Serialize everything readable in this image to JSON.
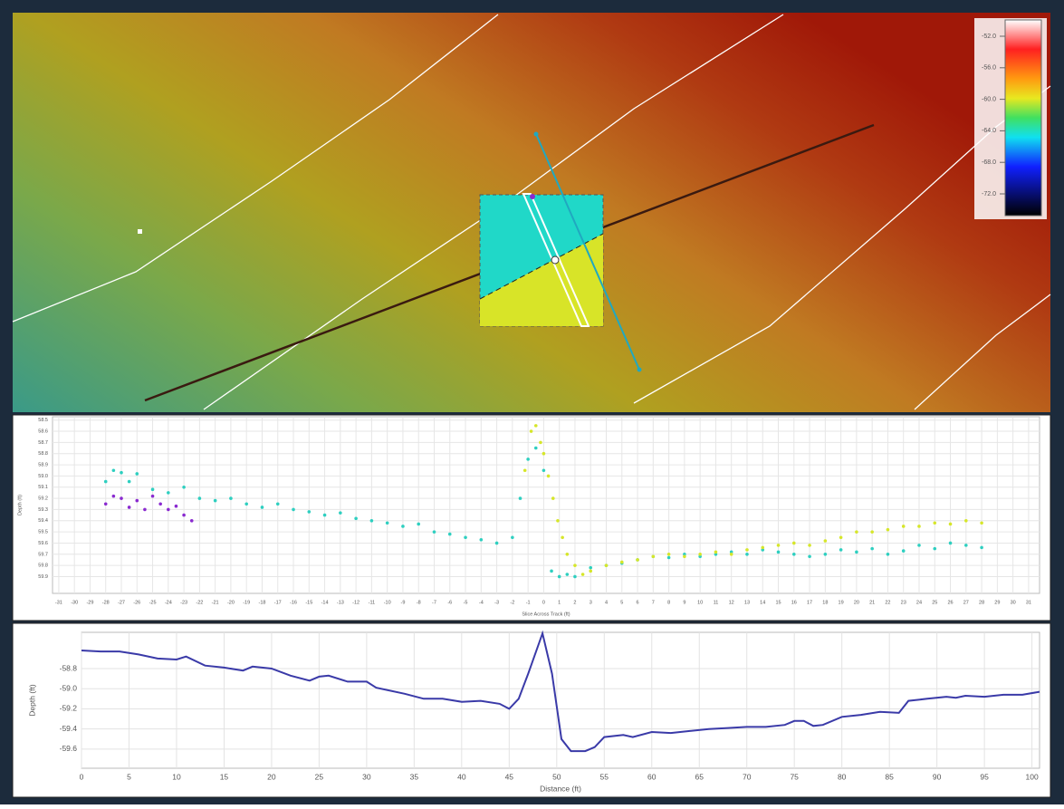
{
  "map": {
    "colorbar_ticks": [
      {
        "value": -52,
        "label": "-52.0"
      },
      {
        "value": -56,
        "label": "-56.0"
      },
      {
        "value": -60,
        "label": "-60.0"
      },
      {
        "value": -64,
        "label": "-64.0"
      },
      {
        "value": -68,
        "label": "-68.0"
      },
      {
        "value": -72,
        "label": "-72.0"
      }
    ]
  },
  "chart_data": [
    {
      "type": "scatter",
      "ylabel": "Depth (ft)",
      "xlabel": "Slice Across Track (ft)",
      "xlim": [
        -31.4,
        31.7
      ],
      "ylim": [
        58.47,
        60.05
      ],
      "y_inverted": true,
      "grid": true,
      "xticks": [
        -31,
        -30,
        -29,
        -28,
        -27,
        -26,
        -25,
        -24,
        -23,
        -22,
        -21,
        -20,
        -19,
        -18,
        -17,
        -16,
        -15,
        -14,
        -13,
        -12,
        -11,
        -10,
        -9,
        -8,
        -7,
        -6,
        -5,
        -4,
        -3,
        -2,
        -1,
        0,
        1,
        2,
        3,
        4,
        5,
        6,
        7,
        8,
        9,
        10,
        11,
        12,
        13,
        14,
        15,
        16,
        17,
        18,
        19,
        20,
        21,
        22,
        23,
        24,
        25,
        26,
        27,
        28,
        29,
        30,
        31
      ],
      "yticks": [
        58.5,
        58.6,
        58.7,
        58.8,
        58.9,
        {
          "value": 59,
          "label": "59.0"
        },
        59.1,
        59.2,
        59.3,
        59.4,
        59.5,
        59.6,
        59.7,
        59.8,
        59.9
      ],
      "series": [
        {
          "color": "#2ecfc0",
          "x": [
            -28,
            -27.5,
            -27,
            -26.5,
            -26,
            -25,
            -24,
            -23,
            -22,
            -21,
            -20,
            -19,
            -18,
            -17,
            -16,
            -15,
            -14,
            -13,
            -12,
            -11,
            -10,
            -9,
            -8,
            -7,
            -6,
            -5,
            -4,
            -3,
            -2,
            -1.5,
            -1,
            -0.5,
            0,
            0.5,
            1,
            1.5,
            2,
            3,
            4,
            5,
            6,
            7,
            8,
            9,
            10,
            11,
            12,
            13,
            14,
            15,
            16,
            17,
            18,
            19,
            20,
            21,
            22,
            23,
            24,
            25,
            26,
            27,
            28
          ],
          "values": [
            59.05,
            58.95,
            58.97,
            59.05,
            58.98,
            59.12,
            59.15,
            59.1,
            59.2,
            59.22,
            59.2,
            59.25,
            59.28,
            59.25,
            59.3,
            59.32,
            59.35,
            59.33,
            59.38,
            59.4,
            59.42,
            59.45,
            59.43,
            59.5,
            59.52,
            59.55,
            59.57,
            59.6,
            59.55,
            59.2,
            58.85,
            58.75,
            58.95,
            59.85,
            59.9,
            59.88,
            59.9,
            59.82,
            59.8,
            59.78,
            59.75,
            59.72,
            59.73,
            59.7,
            59.72,
            59.7,
            59.68,
            59.7,
            59.66,
            59.68,
            59.7,
            59.72,
            59.7,
            59.66,
            59.68,
            59.65,
            59.7,
            59.67,
            59.62,
            59.65,
            59.6,
            59.62,
            59.64
          ]
        },
        {
          "color": "#8a2ad0",
          "x": [
            -28,
            -27.5,
            -27,
            -26.5,
            -26,
            -25.5,
            -25,
            -24.5,
            -24,
            -23.5,
            -23,
            -22.5
          ],
          "values": [
            59.25,
            59.18,
            59.2,
            59.28,
            59.22,
            59.3,
            59.18,
            59.25,
            59.3,
            59.27,
            59.35,
            59.4
          ]
        },
        {
          "color": "#d6e62a",
          "x": [
            -1.2,
            -0.8,
            -0.5,
            -0.2,
            0,
            0.3,
            0.6,
            0.9,
            1.2,
            1.5,
            2,
            2.5,
            3,
            4,
            5,
            6,
            7,
            8,
            9,
            10,
            11,
            12,
            13,
            14,
            15,
            16,
            17,
            18,
            19,
            20,
            21,
            22,
            23,
            24,
            25,
            26,
            27,
            28
          ],
          "values": [
            58.95,
            58.6,
            58.55,
            58.7,
            58.8,
            59.0,
            59.2,
            59.4,
            59.55,
            59.7,
            59.8,
            59.88,
            59.85,
            59.8,
            59.77,
            59.75,
            59.72,
            59.7,
            59.72,
            59.7,
            59.68,
            59.7,
            59.66,
            59.64,
            59.62,
            59.6,
            59.62,
            59.58,
            59.55,
            59.5,
            59.5,
            59.48,
            59.45,
            59.45,
            59.42,
            59.43,
            59.4,
            59.42
          ]
        }
      ]
    },
    {
      "type": "line",
      "ylabel": "Depth (ft)",
      "xlabel": "Distance (ft)",
      "xlim": [
        0,
        100.8
      ],
      "ylim": [
        -59.79,
        -58.44
      ],
      "grid": true,
      "xticks": [
        0,
        5,
        10,
        15,
        20,
        25,
        30,
        35,
        40,
        45,
        50,
        55,
        60,
        65,
        70,
        75,
        80,
        85,
        90,
        95,
        100
      ],
      "yticks": [
        -58.8,
        {
          "value": -59,
          "label": "-59.0"
        },
        -59.2,
        -59.4,
        -59.6
      ],
      "series": [
        {
          "color": "#3a3aa8",
          "x": [
            0,
            2,
            4,
            6,
            8,
            10,
            11,
            13,
            15,
            17,
            18,
            20,
            22,
            24,
            25,
            26,
            28,
            30,
            31,
            34,
            36,
            38,
            40,
            42,
            44,
            45,
            46,
            47,
            48.5,
            49.5,
            50.5,
            51.5,
            53,
            54,
            55,
            57,
            58,
            60,
            62,
            64,
            66,
            68,
            70,
            72,
            74,
            75,
            76,
            77,
            78,
            80,
            82,
            84,
            86,
            87,
            89,
            91,
            92,
            93,
            95,
            97,
            99,
            100.8
          ],
          "values": [
            -58.62,
            -58.63,
            -58.63,
            -58.66,
            -58.7,
            -58.71,
            -58.68,
            -58.77,
            -58.79,
            -58.82,
            -58.78,
            -58.8,
            -58.87,
            -58.92,
            -58.88,
            -58.87,
            -58.93,
            -58.93,
            -58.99,
            -59.05,
            -59.1,
            -59.1,
            -59.13,
            -59.12,
            -59.15,
            -59.2,
            -59.1,
            -58.85,
            -58.45,
            -58.85,
            -59.5,
            -59.62,
            -59.62,
            -59.58,
            -59.48,
            -59.46,
            -59.48,
            -59.43,
            -59.44,
            -59.42,
            -59.4,
            -59.39,
            -59.38,
            -59.38,
            -59.36,
            -59.32,
            -59.32,
            -59.37,
            -59.36,
            -59.28,
            -59.26,
            -59.23,
            -59.24,
            -59.12,
            -59.1,
            -59.08,
            -59.09,
            -59.07,
            -59.08,
            -59.06,
            -59.06,
            -59.03
          ]
        }
      ]
    }
  ]
}
